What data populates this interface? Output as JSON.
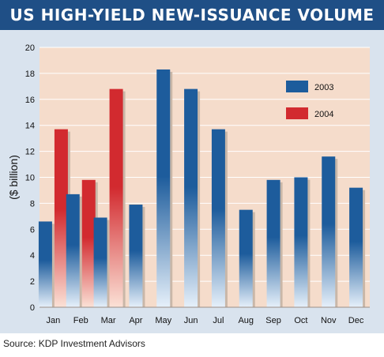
{
  "title": "US HIGH-YIELD NEW-ISSUANCE VOLUME",
  "source": "Source: KDP Investment Advisors",
  "colors": {
    "header": "#1f4f86",
    "panel": "#d9e3ee",
    "plot_bg": "#f5dccb",
    "grid": "#ffffff",
    "series_2003": "#1d5c9c",
    "series_2004": "#d22a2f"
  },
  "chart_data": {
    "type": "bar",
    "title": "US HIGH-YIELD NEW-ISSUANCE VOLUME",
    "xlabel": "",
    "ylabel": "($ billion)",
    "ylim": [
      0,
      20
    ],
    "yticks": [
      "0",
      "2",
      "4",
      "6",
      "8",
      "10",
      "12",
      "14",
      "16",
      "18",
      "20"
    ],
    "grid": true,
    "legend": "top-right",
    "categories": [
      "Jan",
      "Feb",
      "Mar",
      "Apr",
      "May",
      "Jun",
      "Jul",
      "Aug",
      "Sep",
      "Oct",
      "Nov",
      "Dec"
    ],
    "series": [
      {
        "name": "2003",
        "color": "#1d5c9c",
        "values": [
          6.6,
          8.7,
          6.9,
          7.9,
          18.3,
          16.8,
          13.7,
          7.5,
          9.8,
          10.0,
          11.6,
          9.2
        ]
      },
      {
        "name": "2004",
        "color": "#d22a2f",
        "values": [
          13.7,
          9.8,
          16.8,
          null,
          null,
          null,
          null,
          null,
          null,
          null,
          null,
          null
        ]
      }
    ]
  }
}
